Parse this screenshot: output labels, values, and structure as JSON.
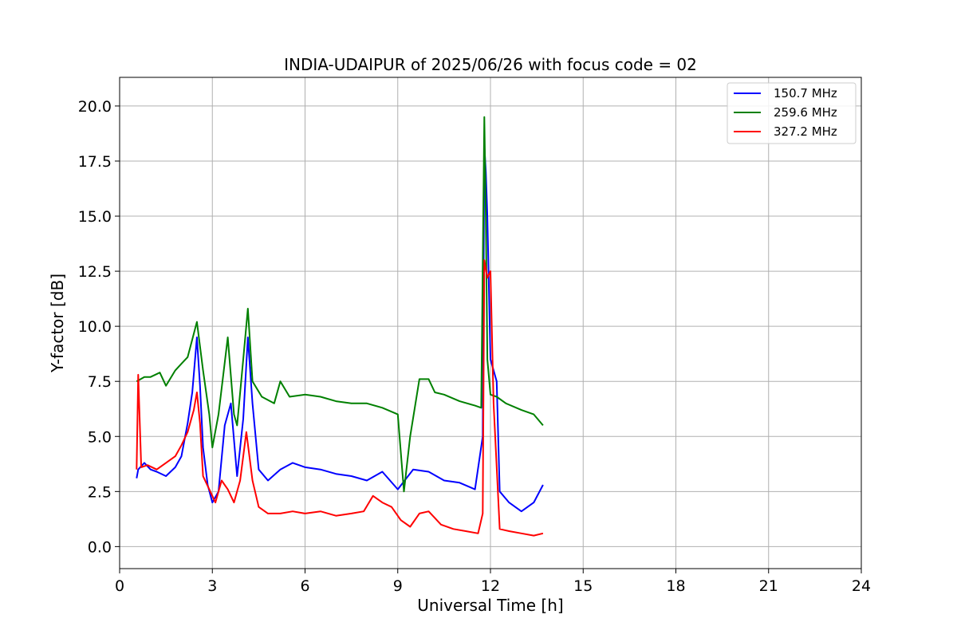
{
  "chart_data": {
    "type": "line",
    "title": "INDIA-UDAIPUR of 2025/06/26 with focus code = 02",
    "xlabel": "Universal Time [h]",
    "ylabel": "Y-factor [dB]",
    "xlim": [
      0,
      24
    ],
    "ylim": [
      -1.0,
      21.3
    ],
    "x_ticks": [
      "0",
      "3",
      "6",
      "9",
      "12",
      "15",
      "18",
      "21",
      "24"
    ],
    "y_ticks": [
      "0.0",
      "2.5",
      "5.0",
      "7.5",
      "10.0",
      "12.5",
      "15.0",
      "17.5",
      "20.0"
    ],
    "grid": true,
    "legend_position": "top-right",
    "series": [
      {
        "name": "150.7 MHz",
        "color": "#0000ff",
        "x": [
          0.55,
          0.6,
          0.8,
          1.0,
          1.2,
          1.5,
          1.8,
          2.0,
          2.2,
          2.35,
          2.5,
          2.6,
          2.7,
          2.85,
          3.0,
          3.2,
          3.4,
          3.6,
          3.8,
          4.0,
          4.15,
          4.3,
          4.5,
          4.8,
          5.2,
          5.6,
          6.0,
          6.5,
          7.0,
          7.5,
          8.0,
          8.5,
          9.0,
          9.5,
          10.0,
          10.5,
          11.0,
          11.5,
          11.75,
          11.8,
          11.85,
          11.9,
          12.0,
          12.2,
          12.3,
          12.6,
          13.0,
          13.4,
          13.7
        ],
        "y": [
          3.1,
          3.5,
          3.8,
          3.5,
          3.4,
          3.2,
          3.6,
          4.1,
          5.6,
          7.0,
          9.5,
          7.3,
          4.5,
          2.8,
          2.0,
          2.5,
          5.5,
          6.5,
          3.2,
          5.8,
          9.5,
          6.5,
          3.5,
          3.0,
          3.5,
          3.8,
          3.6,
          3.5,
          3.3,
          3.2,
          3.0,
          3.4,
          2.6,
          3.5,
          3.4,
          3.0,
          2.9,
          2.6,
          5.0,
          18.2,
          17.0,
          15.0,
          8.5,
          7.5,
          2.5,
          2.0,
          1.6,
          2.0,
          2.8
        ]
      },
      {
        "name": "259.6 MHz",
        "color": "#008000",
        "x": [
          0.55,
          0.8,
          1.0,
          1.3,
          1.5,
          1.8,
          2.0,
          2.2,
          2.5,
          2.7,
          2.9,
          3.0,
          3.2,
          3.5,
          3.7,
          3.8,
          4.0,
          4.15,
          4.3,
          4.6,
          5.0,
          5.2,
          5.5,
          6.0,
          6.5,
          7.0,
          7.5,
          8.0,
          8.5,
          9.0,
          9.2,
          9.4,
          9.7,
          10.0,
          10.2,
          10.5,
          11.0,
          11.5,
          11.7,
          11.8,
          11.85,
          11.9,
          12.0,
          12.2,
          12.5,
          13.0,
          13.4,
          13.7
        ],
        "y": [
          7.5,
          7.7,
          7.7,
          7.9,
          7.3,
          8.0,
          8.3,
          8.6,
          10.2,
          8.0,
          6.0,
          4.5,
          6.0,
          9.5,
          6.0,
          5.5,
          8.5,
          10.8,
          7.5,
          6.8,
          6.5,
          7.5,
          6.8,
          6.9,
          6.8,
          6.6,
          6.5,
          6.5,
          6.3,
          6.0,
          2.5,
          5.0,
          7.6,
          7.6,
          7.0,
          6.9,
          6.6,
          6.4,
          6.3,
          19.5,
          15.0,
          8.5,
          6.9,
          6.8,
          6.5,
          6.2,
          6.0,
          5.5
        ]
      },
      {
        "name": "327.2 MHz",
        "color": "#ff0000",
        "x": [
          0.55,
          0.6,
          0.7,
          0.9,
          1.2,
          1.5,
          1.8,
          2.0,
          2.2,
          2.4,
          2.5,
          2.6,
          2.7,
          2.9,
          3.1,
          3.3,
          3.5,
          3.7,
          3.9,
          4.1,
          4.3,
          4.5,
          4.8,
          5.2,
          5.6,
          6.0,
          6.5,
          7.0,
          7.5,
          7.9,
          8.2,
          8.5,
          8.8,
          9.1,
          9.4,
          9.7,
          10.0,
          10.4,
          10.8,
          11.2,
          11.6,
          11.75,
          11.8,
          11.9,
          12.0,
          12.1,
          12.3,
          12.6,
          13.0,
          13.4,
          13.7
        ],
        "y": [
          3.5,
          7.8,
          3.6,
          3.7,
          3.5,
          3.8,
          4.1,
          4.6,
          5.2,
          6.2,
          7.0,
          5.6,
          3.2,
          2.6,
          2.0,
          3.0,
          2.6,
          2.0,
          3.0,
          5.2,
          3.0,
          1.8,
          1.5,
          1.5,
          1.6,
          1.5,
          1.6,
          1.4,
          1.5,
          1.6,
          2.3,
          2.0,
          1.8,
          1.2,
          0.9,
          1.5,
          1.6,
          1.0,
          0.8,
          0.7,
          0.6,
          1.5,
          13.0,
          12.2,
          12.5,
          6.5,
          0.8,
          0.7,
          0.6,
          0.5,
          0.6
        ]
      }
    ]
  }
}
